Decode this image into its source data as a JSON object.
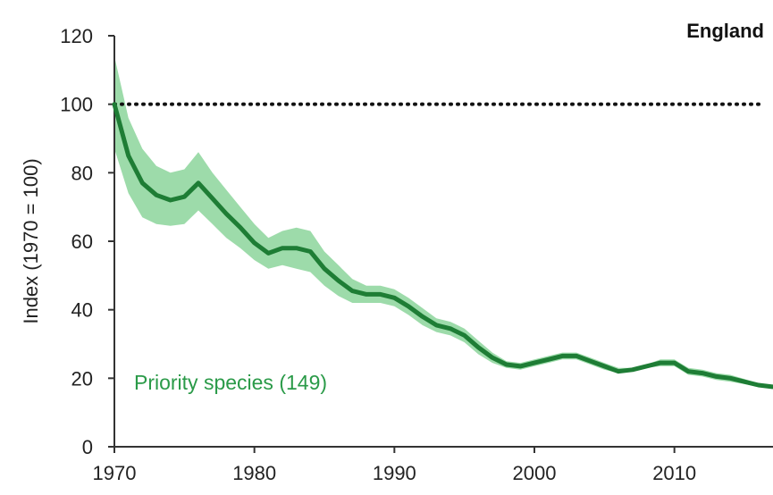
{
  "chart_data": {
    "type": "line",
    "region_label": "England",
    "ylabel": "Index (1970 = 100)",
    "xlabel": "",
    "xlim": [
      1970,
      2018
    ],
    "ylim": [
      0,
      120
    ],
    "grid": false,
    "x_ticks": [
      "1970",
      "1980",
      "1990",
      "2000",
      "2010"
    ],
    "y_ticks": [
      "0",
      "20",
      "40",
      "60",
      "80",
      "100",
      "120"
    ],
    "reference_line": {
      "y": 100,
      "style": "dotted"
    },
    "colors": {
      "line": "#1e7d35",
      "band": "#7ccf8d",
      "label": "#2a9a48"
    },
    "series": [
      {
        "name": "Priority species (149)",
        "x": [
          1970,
          1971,
          1972,
          1973,
          1974,
          1975,
          1976,
          1977,
          1978,
          1979,
          1980,
          1981,
          1982,
          1983,
          1984,
          1985,
          1986,
          1987,
          1988,
          1989,
          1990,
          1991,
          1992,
          1993,
          1994,
          1995,
          1996,
          1997,
          1998,
          1999,
          2000,
          2001,
          2002,
          2003,
          2004,
          2005,
          2006,
          2007,
          2008,
          2009,
          2010,
          2011,
          2012,
          2013,
          2014,
          2015,
          2016,
          2017,
          2018
        ],
        "y": [
          100,
          85,
          77,
          73.5,
          72,
          73,
          77,
          72.5,
          68,
          64,
          59.5,
          56.5,
          58,
          58,
          57,
          52,
          48.5,
          45.5,
          44.5,
          44.5,
          43.5,
          41,
          38,
          35.5,
          34.5,
          32.5,
          29,
          26,
          24,
          23.5,
          24.5,
          25.5,
          26.5,
          26.5,
          25,
          23.5,
          22,
          22.5,
          23.5,
          24.5,
          24.5,
          22,
          21.5,
          20.5,
          20,
          19,
          18,
          17.5,
          17.5
        ],
        "lower": [
          87,
          74,
          67,
          65,
          64.5,
          65,
          69,
          65,
          61,
          58,
          54.5,
          52,
          53,
          52,
          51,
          47,
          44,
          42,
          42,
          42,
          41,
          38.5,
          35.5,
          33.5,
          32.5,
          30.5,
          27,
          24.5,
          23,
          22.5,
          23.5,
          24.5,
          25.5,
          25.5,
          24,
          22.5,
          21.5,
          22,
          23,
          23.5,
          23.5,
          21,
          20.5,
          19.5,
          19,
          18.3,
          17.5,
          17,
          17
        ],
        "upper": [
          114,
          96,
          87,
          82,
          80,
          81,
          86,
          80,
          75,
          70,
          65,
          61,
          63,
          64,
          63,
          57,
          53,
          49,
          47,
          47,
          46,
          43.5,
          40.5,
          37.5,
          36.5,
          34.5,
          31,
          27.5,
          25,
          24.5,
          25.5,
          26.5,
          27.5,
          27.5,
          26,
          24.5,
          23,
          23,
          24,
          25.5,
          25.5,
          23,
          22.5,
          21.5,
          21,
          19.8,
          18.5,
          18,
          18
        ]
      }
    ]
  }
}
